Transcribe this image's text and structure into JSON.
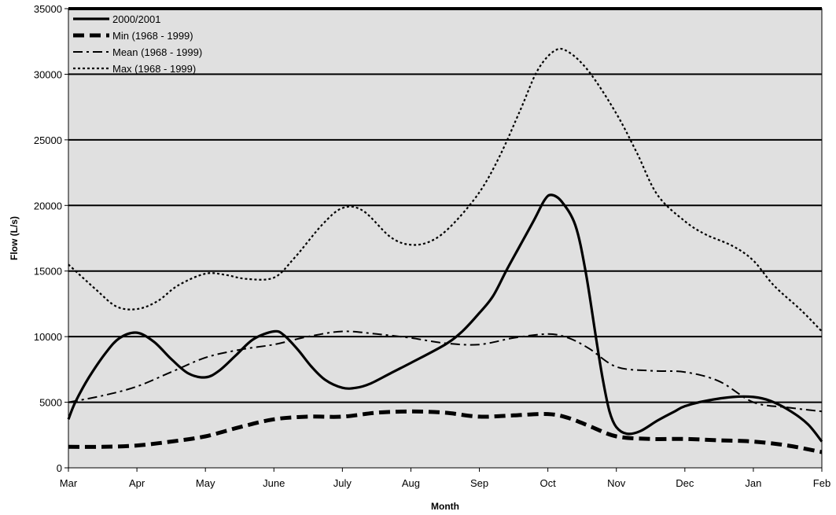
{
  "chart_data": {
    "type": "line",
    "title": "",
    "xlabel": "Month",
    "ylabel": "Flow (L/s)",
    "ylim": [
      0,
      35000
    ],
    "yticks": [
      "0",
      "5000",
      "10000",
      "15000",
      "20000",
      "25000",
      "30000",
      "35000"
    ],
    "categories": [
      "Mar",
      "Apr",
      "May",
      "June",
      "July",
      "Aug",
      "Sep",
      "Oct",
      "Nov",
      "Dec",
      "Jan",
      "Feb"
    ],
    "grid": "horizontal",
    "plot_background": "#e0e0e0",
    "legend_position": "top-left",
    "series": [
      {
        "name": "2000/2001",
        "style": "solid-thick",
        "color": "#000000",
        "points": [
          [
            0,
            3700
          ],
          [
            0.1,
            5000
          ],
          [
            0.3,
            6900
          ],
          [
            0.55,
            8800
          ],
          [
            0.75,
            9900
          ],
          [
            1,
            10300
          ],
          [
            1.25,
            9600
          ],
          [
            1.5,
            8300
          ],
          [
            1.75,
            7200
          ],
          [
            2,
            6900
          ],
          [
            2.2,
            7400
          ],
          [
            2.45,
            8600
          ],
          [
            2.7,
            9800
          ],
          [
            3,
            10400
          ],
          [
            3.15,
            10100
          ],
          [
            3.35,
            9000
          ],
          [
            3.55,
            7700
          ],
          [
            3.75,
            6700
          ],
          [
            4,
            6100
          ],
          [
            4.2,
            6100
          ],
          [
            4.4,
            6400
          ],
          [
            4.7,
            7200
          ],
          [
            5,
            8000
          ],
          [
            5.5,
            9400
          ],
          [
            5.75,
            10400
          ],
          [
            6,
            11800
          ],
          [
            6.2,
            13100
          ],
          [
            6.4,
            15100
          ],
          [
            6.6,
            17000
          ],
          [
            6.8,
            18900
          ],
          [
            6.95,
            20400
          ],
          [
            7.05,
            20800
          ],
          [
            7.2,
            20300
          ],
          [
            7.4,
            18500
          ],
          [
            7.55,
            15000
          ],
          [
            7.7,
            10000
          ],
          [
            7.8,
            6800
          ],
          [
            7.9,
            4300
          ],
          [
            8,
            3100
          ],
          [
            8.15,
            2600
          ],
          [
            8.35,
            2800
          ],
          [
            8.6,
            3600
          ],
          [
            8.85,
            4300
          ],
          [
            9,
            4700
          ],
          [
            9.3,
            5100
          ],
          [
            9.7,
            5400
          ],
          [
            10,
            5400
          ],
          [
            10.25,
            5100
          ],
          [
            10.55,
            4300
          ],
          [
            10.8,
            3300
          ],
          [
            11,
            2000
          ]
        ]
      },
      {
        "name": "Min (1968 - 1999)",
        "style": "dash-thick",
        "color": "#000000",
        "points": [
          [
            0,
            1600
          ],
          [
            0.5,
            1600
          ],
          [
            1,
            1700
          ],
          [
            1.5,
            2000
          ],
          [
            2,
            2400
          ],
          [
            2.5,
            3100
          ],
          [
            3,
            3700
          ],
          [
            3.5,
            3900
          ],
          [
            4,
            3900
          ],
          [
            4.5,
            4200
          ],
          [
            5,
            4300
          ],
          [
            5.5,
            4200
          ],
          [
            6,
            3900
          ],
          [
            6.5,
            4000
          ],
          [
            7,
            4100
          ],
          [
            7.3,
            3800
          ],
          [
            7.6,
            3200
          ],
          [
            8,
            2400
          ],
          [
            8.5,
            2200
          ],
          [
            9,
            2200
          ],
          [
            9.5,
            2100
          ],
          [
            10,
            2000
          ],
          [
            10.5,
            1700
          ],
          [
            11,
            1200
          ]
        ]
      },
      {
        "name": "Mean (1968 - 1999)",
        "style": "dashdot",
        "color": "#000000",
        "points": [
          [
            0,
            5000
          ],
          [
            0.5,
            5500
          ],
          [
            1,
            6200
          ],
          [
            1.5,
            7300
          ],
          [
            2,
            8400
          ],
          [
            2.5,
            9000
          ],
          [
            3,
            9400
          ],
          [
            3.5,
            10000
          ],
          [
            4,
            10400
          ],
          [
            4.5,
            10200
          ],
          [
            5,
            9900
          ],
          [
            5.5,
            9500
          ],
          [
            6,
            9400
          ],
          [
            6.5,
            9900
          ],
          [
            7,
            10200
          ],
          [
            7.3,
            9900
          ],
          [
            7.6,
            9100
          ],
          [
            8,
            7700
          ],
          [
            8.5,
            7400
          ],
          [
            9,
            7300
          ],
          [
            9.5,
            6600
          ],
          [
            10,
            5000
          ],
          [
            10.5,
            4600
          ],
          [
            11,
            4300
          ]
        ]
      },
      {
        "name": "Max (1968 - 1999)",
        "style": "dot",
        "color": "#000000",
        "points": [
          [
            0,
            15500
          ],
          [
            0.4,
            13600
          ],
          [
            0.7,
            12300
          ],
          [
            1,
            12100
          ],
          [
            1.3,
            12700
          ],
          [
            1.6,
            13900
          ],
          [
            2,
            14800
          ],
          [
            2.3,
            14700
          ],
          [
            2.6,
            14400
          ],
          [
            3,
            14500
          ],
          [
            3.3,
            16000
          ],
          [
            3.7,
            18500
          ],
          [
            4,
            19800
          ],
          [
            4.3,
            19600
          ],
          [
            4.7,
            17600
          ],
          [
            5,
            17000
          ],
          [
            5.3,
            17300
          ],
          [
            5.6,
            18500
          ],
          [
            6,
            21000
          ],
          [
            6.3,
            23800
          ],
          [
            6.6,
            27300
          ],
          [
            6.85,
            30300
          ],
          [
            7.1,
            31800
          ],
          [
            7.3,
            31700
          ],
          [
            7.6,
            30200
          ],
          [
            8,
            27000
          ],
          [
            8.3,
            24000
          ],
          [
            8.6,
            20800
          ],
          [
            9,
            18800
          ],
          [
            9.3,
            17800
          ],
          [
            9.7,
            16900
          ],
          [
            10,
            15800
          ],
          [
            10.3,
            13900
          ],
          [
            10.7,
            12000
          ],
          [
            11,
            10400
          ]
        ]
      }
    ]
  }
}
